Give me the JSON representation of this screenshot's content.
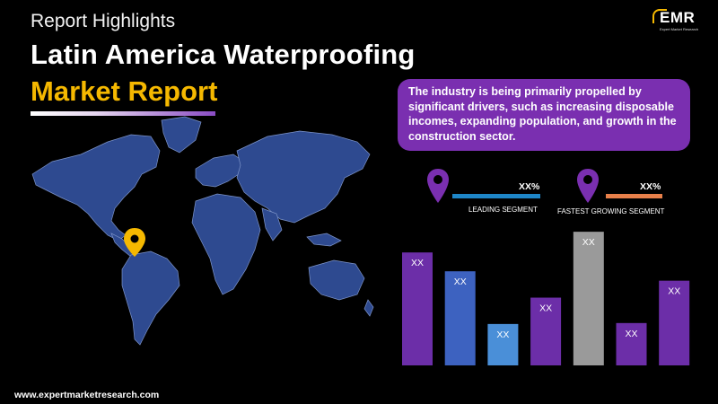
{
  "header": {
    "kicker": "Report Highlights",
    "title_line1": "Latin America Waterproofing",
    "title_line2": "Market Report"
  },
  "brand": {
    "logo_text": "EMR",
    "logo_sub": "Expert Market Research",
    "accent_yellow": "#f5b800",
    "accent_purple": "#7a2fb0"
  },
  "callout": {
    "text": "The industry is being primarily propelled by significant drivers, such as increasing disposable incomes, expanding population, and growth in the construction sector."
  },
  "segments": [
    {
      "value": "XX%",
      "label": "LEADING SEGMENT",
      "line_color": "#1e86c8",
      "icon": "location-pin-icon"
    },
    {
      "value": "XX%",
      "label": "FASTEST GROWING SEGMENT",
      "line_color": "#e8804a",
      "icon": "location-pin-icon"
    }
  ],
  "map": {
    "icon": "location-pin-icon",
    "highlight_color": "#f5b800"
  },
  "chart_data": {
    "type": "bar",
    "categories": [
      "",
      "",
      "",
      "",
      "",
      "",
      ""
    ],
    "values": [
      120,
      100,
      44,
      72,
      142,
      45,
      90
    ],
    "data_labels": [
      "XX",
      "XX",
      "XX",
      "XX",
      "XX",
      "XX",
      "XX"
    ],
    "colors": [
      "#6c2ea8",
      "#3d62c0",
      "#4a8fd8",
      "#6c2ea8",
      "#9a9a9a",
      "#6c2ea8",
      "#6c2ea8"
    ],
    "title": "",
    "xlabel": "",
    "ylabel": "",
    "ylim": [
      0,
      145
    ],
    "grid": false
  },
  "footer": {
    "url": "www.expertmarketresearch.com"
  }
}
